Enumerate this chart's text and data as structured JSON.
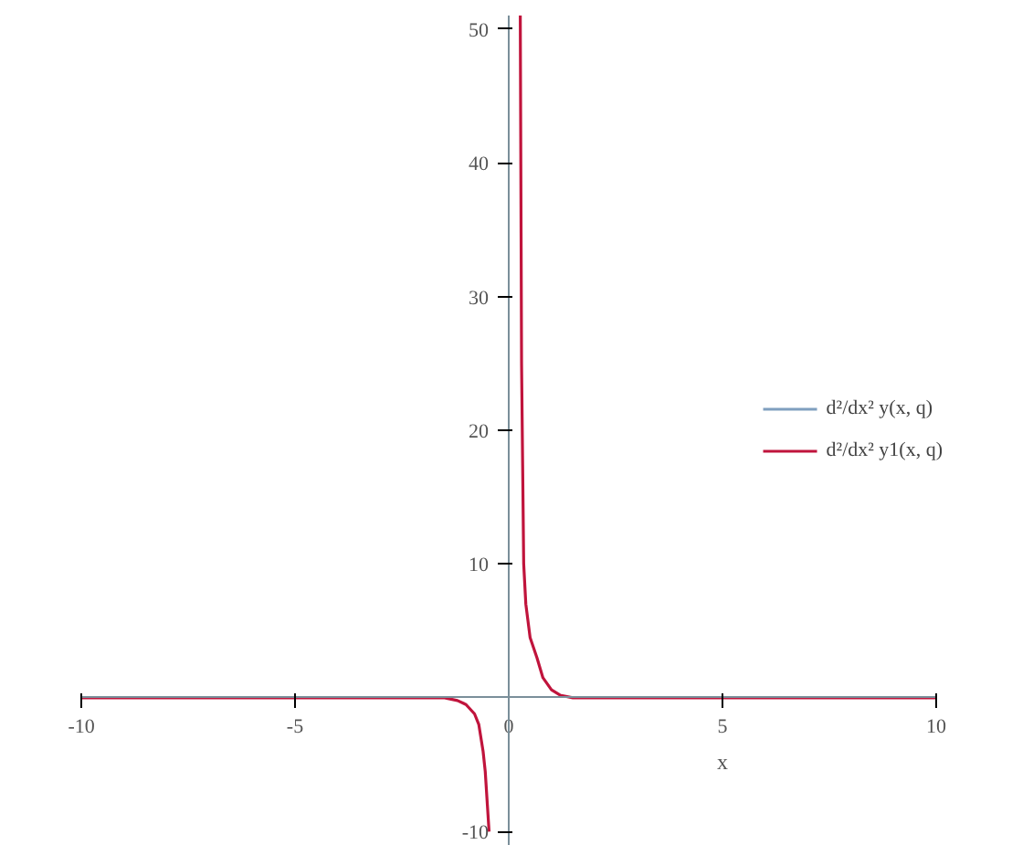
{
  "chart_data": {
    "type": "line",
    "xlabel": "x",
    "x": [
      -10,
      -5,
      -3,
      -2,
      -1.5,
      -1.2,
      -1,
      -0.8,
      -0.7,
      -0.6,
      -0.55,
      -0.5,
      -0.46,
      0,
      0.27,
      0.3,
      0.35,
      0.4,
      0.5,
      0.66,
      0.8,
      1,
      1.2,
      1.5,
      2,
      3,
      5,
      10
    ],
    "series": [
      {
        "name": "d²/dx² y(x, q)",
        "color": "#7f9fbf",
        "values": [
          null,
          null,
          null,
          null,
          null,
          null,
          null,
          null,
          null,
          null,
          null,
          null,
          null,
          null,
          null,
          null,
          null,
          null,
          null,
          null,
          null,
          null,
          null,
          null,
          null,
          null,
          null,
          null
        ]
      },
      {
        "name": "d²/dx² y1(x, q)",
        "color": "#c0143c",
        "values": [
          0,
          0,
          0,
          0,
          0,
          -0.2,
          -0.5,
          -1.2,
          -2,
          -4,
          -5.5,
          -8,
          -10,
          null,
          51,
          25,
          10,
          7,
          4.5,
          3,
          1.5,
          0.6,
          0.2,
          0,
          0,
          0,
          0,
          0
        ]
      }
    ],
    "xlim": [
      -10,
      10
    ],
    "ylim": [
      -11,
      51
    ],
    "xticks": [
      -10,
      -5,
      0,
      5,
      10
    ],
    "yticks": [
      -10,
      10,
      20,
      30,
      40,
      50
    ],
    "grid": false,
    "legend": "right"
  }
}
